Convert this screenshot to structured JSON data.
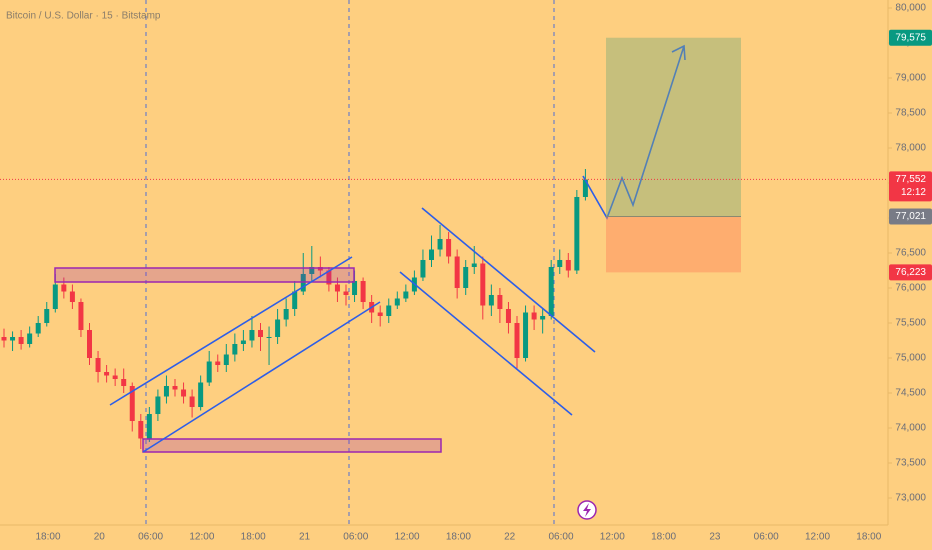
{
  "chart_data": {
    "type": "candlestick",
    "title": "Bitcoin / U.S. Dollar · 15 · Bitstamp",
    "ylim": [
      72543,
      80114
    ],
    "yticks": [
      {
        "value": 73000,
        "label": "73,000"
      },
      {
        "value": 73500,
        "label": "73,500"
      },
      {
        "value": 74000,
        "label": "74,000"
      },
      {
        "value": 74500,
        "label": "74,500"
      },
      {
        "value": 75000,
        "label": "75,000"
      },
      {
        "value": 75500,
        "label": "75,500"
      },
      {
        "value": 76000,
        "label": "76,000"
      },
      {
        "value": 76500,
        "label": "76,500"
      },
      {
        "value": 77000,
        "label": "77,000"
      },
      {
        "value": 77500,
        "label": "77,500"
      },
      {
        "value": 78000,
        "label": "78,000"
      },
      {
        "value": 78500,
        "label": "78,500"
      },
      {
        "value": 79000,
        "label": "79,000"
      },
      {
        "value": 79500,
        "label": "79,500"
      },
      {
        "value": 80000,
        "label": "80,000"
      }
    ],
    "x_labels": [
      "18:00",
      "20",
      "06:00",
      "12:00",
      "18:00",
      "21",
      "06:00",
      "12:00",
      "18:00",
      "22",
      "06:00",
      "12:00",
      "18:00",
      "23",
      "06:00",
      "12:00",
      "18:00"
    ],
    "up_color": "#089981",
    "down_color": "#f23645",
    "open": [
      75300,
      75250,
      75300,
      75200,
      75350,
      75500,
      75700,
      76050,
      75950,
      75800,
      75400,
      75000,
      74800,
      74750,
      74700,
      74600,
      74100,
      73850,
      74200,
      74450,
      74600,
      74550,
      74450,
      74300,
      74650,
      74950,
      74900,
      75050,
      75200,
      75250,
      75400,
      75300,
      75300,
      75550,
      75700,
      75950,
      76200,
      76300,
      76250,
      76050,
      75950,
      75900,
      76100,
      75800,
      75650,
      75600,
      75750,
      75850,
      75950,
      76150,
      76400,
      76550,
      76700,
      76450,
      76000,
      76300,
      76350,
      75750,
      75900,
      75700,
      75500,
      75000,
      75650,
      75550,
      75600,
      76300,
      76400,
      76250,
      77300
    ],
    "high": [
      75420,
      75380,
      75400,
      75450,
      75600,
      75800,
      76200,
      76150,
      76050,
      75850,
      75500,
      75100,
      74900,
      74850,
      74850,
      74650,
      74200,
      74300,
      74550,
      74750,
      74700,
      74650,
      74550,
      74750,
      75100,
      75050,
      75200,
      75350,
      75400,
      75600,
      75500,
      75450,
      75700,
      75850,
      76100,
      76500,
      76600,
      76450,
      76300,
      76150,
      76050,
      76250,
      76150,
      75900,
      75750,
      75850,
      75950,
      76050,
      76250,
      76550,
      76750,
      76900,
      76800,
      76550,
      76400,
      76600,
      76450,
      76050,
      76000,
      75800,
      75600,
      75750,
      75750,
      75700,
      76400,
      76550,
      76500,
      77400,
      77700
    ],
    "low": [
      75150,
      75100,
      75120,
      75150,
      75300,
      75450,
      75650,
      75850,
      75700,
      75300,
      74900,
      74650,
      74650,
      74600,
      74500,
      73950,
      73700,
      73800,
      74100,
      74350,
      74450,
      74350,
      74150,
      74250,
      74600,
      74800,
      74800,
      74950,
      75100,
      75150,
      75100,
      74900,
      75200,
      75450,
      75600,
      75900,
      76100,
      76150,
      75950,
      75800,
      75750,
      75800,
      75700,
      75500,
      75450,
      75500,
      75700,
      75800,
      75900,
      76100,
      76300,
      76450,
      76350,
      75850,
      75900,
      76200,
      75550,
      75600,
      75500,
      75350,
      74850,
      74950,
      75400,
      75350,
      75550,
      76200,
      76150,
      76200,
      77250
    ],
    "close": [
      75250,
      75300,
      75200,
      75350,
      75500,
      75700,
      76050,
      75950,
      75800,
      75400,
      75000,
      74800,
      74750,
      74700,
      74600,
      74100,
      73850,
      74200,
      74450,
      74600,
      74550,
      74450,
      74300,
      74650,
      74950,
      74900,
      75050,
      75200,
      75250,
      75400,
      75300,
      75300,
      75550,
      75700,
      75950,
      76200,
      76300,
      76250,
      76050,
      75950,
      75900,
      76100,
      75800,
      75650,
      75600,
      75750,
      75850,
      75950,
      76150,
      76400,
      76550,
      76700,
      76450,
      76000,
      76300,
      76350,
      75750,
      75900,
      75700,
      75500,
      75000,
      75650,
      75550,
      75600,
      76300,
      76400,
      76250,
      77300,
      77550
    ],
    "price_labels": [
      {
        "value": 79575,
        "label": "79,575",
        "color": "#089981"
      },
      {
        "value": 77552,
        "label": "77,552",
        "color": "#f23645"
      },
      {
        "value": 77021,
        "label": "77,021",
        "color": "#787b86"
      },
      {
        "value": 76223,
        "label": "76,223",
        "color": "#f23645"
      }
    ],
    "countdown": "12:12"
  }
}
